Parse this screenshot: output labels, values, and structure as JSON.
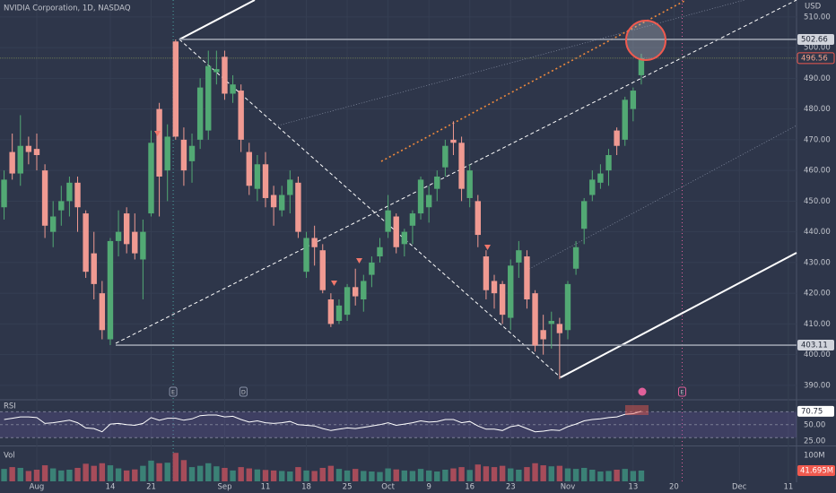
{
  "chart_data": {
    "type": "candlestick",
    "title": "NVIDIA Corporation, 1D, NASDAQ",
    "currency": "USD",
    "up_color": "#52a974",
    "down_color": "#f09a92",
    "xlim": [
      -0.5,
      97
    ],
    "xticks": [
      {
        "value": 4,
        "label": "Aug"
      },
      {
        "value": 13,
        "label": "14"
      },
      {
        "value": 18,
        "label": "21"
      },
      {
        "value": 27,
        "label": "Sep"
      },
      {
        "value": 32,
        "label": "11"
      },
      {
        "value": 37,
        "label": "18"
      },
      {
        "value": 42,
        "label": "25"
      },
      {
        "value": 47,
        "label": "Oct"
      },
      {
        "value": 52,
        "label": "9"
      },
      {
        "value": 57,
        "label": "16"
      },
      {
        "value": 62,
        "label": "23"
      },
      {
        "value": 69,
        "label": "Nov"
      },
      {
        "value": 77,
        "label": "13"
      },
      {
        "value": 82,
        "label": "20"
      },
      {
        "value": 90,
        "label": "Dec"
      },
      {
        "value": 96,
        "label": "11"
      }
    ],
    "ylim": [
      385.6,
      515.5
    ],
    "yticks": [
      {
        "value": 510,
        "label": "510.00"
      },
      {
        "value": 500,
        "label": "500.00"
      },
      {
        "value": 490,
        "label": "490.00"
      },
      {
        "value": 480,
        "label": "480.00"
      },
      {
        "value": 470,
        "label": "470.00"
      },
      {
        "value": 460,
        "label": "460.00"
      },
      {
        "value": 450,
        "label": "450.00"
      },
      {
        "value": 440,
        "label": "440.00"
      },
      {
        "value": 430,
        "label": "430.00"
      },
      {
        "value": 420,
        "label": "420.00"
      },
      {
        "value": 410,
        "label": "410.00"
      },
      {
        "value": 400,
        "label": "400.00"
      },
      {
        "value": 390,
        "label": "390.00"
      }
    ],
    "price_levels": [
      502.66,
      403.11
    ],
    "events": [
      {
        "label": "E",
        "x": 20.7
      },
      {
        "label": "D",
        "x": 29.3
      },
      {
        "label": "E",
        "x": 83
      }
    ],
    "candles": {
      "open": [
        448,
        466,
        459,
        468,
        467,
        460,
        440,
        447,
        450,
        456,
        446,
        433,
        420,
        405,
        437,
        446,
        440,
        431,
        446,
        480,
        460,
        502,
        470,
        463,
        470,
        473,
        492,
        497,
        485,
        486,
        466,
        454,
        462,
        452,
        447,
        452,
        456,
        427,
        438,
        434,
        418,
        411,
        413,
        422,
        418,
        426,
        432,
        440,
        445,
        436,
        442,
        446,
        448,
        454,
        461,
        470,
        469,
        451,
        450,
        432,
        424,
        423,
        412,
        430,
        432,
        420,
        408,
        410,
        410,
        408,
        428,
        441,
        452,
        456,
        460,
        473,
        470,
        480,
        491
      ],
      "high": [
        460,
        472,
        478,
        471,
        472,
        462,
        450,
        455,
        458,
        458,
        447,
        440,
        424,
        438,
        447,
        448,
        446,
        444,
        473,
        482,
        475,
        502.66,
        474,
        472,
        490,
        499,
        499,
        499,
        491,
        488,
        469,
        465,
        466,
        455,
        455,
        460,
        458,
        440,
        442,
        436,
        420,
        418,
        423,
        428,
        426,
        432,
        438,
        452,
        446,
        441,
        447,
        458,
        455,
        460,
        470,
        476,
        471,
        462,
        452,
        434,
        426,
        424,
        431,
        437,
        434,
        421,
        413,
        414,
        412,
        424,
        437,
        451,
        460,
        462,
        467,
        474,
        484,
        487,
        498
      ],
      "low": [
        444,
        457,
        455,
        462,
        460,
        438,
        435,
        442,
        445,
        440,
        425,
        418,
        405,
        403.11,
        432,
        433,
        431,
        418,
        445,
        445,
        450,
        470,
        455,
        456,
        467,
        470,
        488,
        483,
        482,
        466,
        452,
        450,
        448,
        442,
        445,
        446,
        438,
        425,
        429,
        420,
        409,
        410,
        411,
        416,
        414,
        422,
        430,
        438,
        433,
        432,
        436,
        444,
        443,
        450,
        458,
        465,
        450,
        448,
        435,
        418,
        415,
        410,
        408,
        425,
        415,
        401,
        400,
        402,
        392,
        405,
        426,
        436,
        450,
        454,
        455,
        465,
        468,
        476,
        488
      ],
      "close": [
        457,
        459,
        468,
        466,
        465,
        442,
        445,
        450,
        456,
        448,
        427,
        423,
        408,
        437,
        440,
        436,
        433,
        440,
        469,
        458,
        471,
        471,
        460,
        468,
        487,
        494,
        493,
        485,
        488,
        470,
        455,
        462,
        451,
        448,
        452,
        457,
        440,
        438,
        435,
        421,
        410,
        416,
        422,
        419,
        424,
        430,
        435,
        447,
        435,
        440,
        446,
        457,
        452,
        458,
        468,
        469,
        454,
        460,
        439,
        421,
        420,
        413,
        429,
        434,
        418,
        403,
        405,
        411,
        407,
        423,
        435,
        450,
        457,
        459,
        465,
        468,
        483,
        486,
        496.56
      ]
    },
    "rsi": {
      "title": "RSI",
      "color": "#ffffff",
      "ylim": [
        17.8,
        85.8
      ],
      "yticks": [
        {
          "value": 50,
          "label": "50.00"
        },
        {
          "value": 25,
          "label": "25.00"
        }
      ],
      "band": [
        30,
        70
      ],
      "values": [
        58,
        60,
        62,
        62,
        61,
        52,
        53,
        55,
        57,
        53,
        45,
        44,
        39,
        51,
        52,
        50,
        49,
        52,
        61,
        57,
        60,
        60,
        57,
        59,
        64,
        65,
        65,
        62,
        63,
        58,
        54,
        56,
        53,
        52,
        53,
        55,
        50,
        49,
        48,
        44,
        41,
        43,
        45,
        44,
        46,
        48,
        50,
        53,
        49,
        51,
        53,
        56,
        54,
        55,
        58,
        58,
        53,
        55,
        48,
        43,
        43,
        41,
        47,
        49,
        44,
        39,
        40,
        42,
        41,
        47,
        51,
        56,
        58,
        59,
        61,
        62,
        66,
        67,
        70.75
      ]
    },
    "volume": {
      "title": "Vol",
      "up_color": "#3b8176",
      "down_color": "#a64c5a",
      "ylim": [
        0,
        128
      ],
      "yticks": [
        {
          "value": 100,
          "label": "100M"
        }
      ],
      "last_value_label": "41.695M",
      "values": [
        48,
        55,
        52,
        40,
        45,
        62,
        50,
        42,
        45,
        52,
        68,
        60,
        70,
        62,
        50,
        42,
        46,
        60,
        80,
        70,
        72,
        110,
        82,
        55,
        60,
        70,
        58,
        52,
        42,
        55,
        50,
        46,
        44,
        42,
        40,
        38,
        55,
        42,
        40,
        52,
        60,
        48,
        42,
        48,
        40,
        38,
        36,
        50,
        46,
        42,
        40,
        48,
        42,
        38,
        45,
        50,
        55,
        44,
        65,
        58,
        55,
        60,
        50,
        45,
        55,
        70,
        62,
        58,
        60,
        50,
        48,
        52,
        45,
        38,
        40,
        45,
        48,
        40,
        41.695
      ]
    }
  }
}
